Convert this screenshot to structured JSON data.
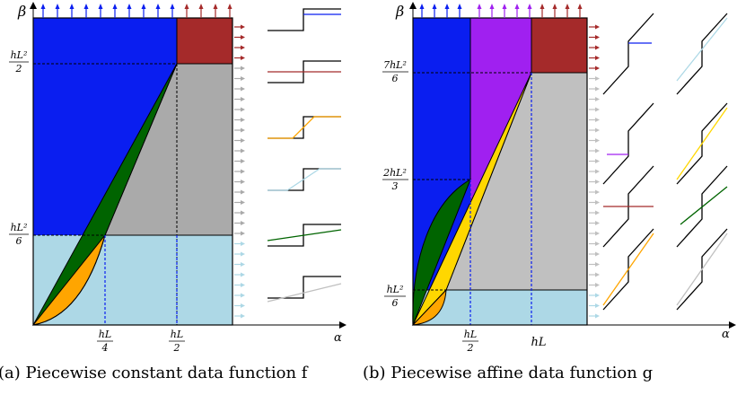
{
  "colors": {
    "blue": "#0a1ef0",
    "dark_red": "#a52a2a",
    "gray": "#aaaaaa",
    "light_blue": "#add8e6",
    "dark_green": "#006400",
    "orange": "#ffa500",
    "purple": "#a020f0",
    "gold": "#ffd700",
    "silver": "#c0c0c0",
    "black": "#000000"
  },
  "panel_a": {
    "caption": "(a) Piecewise constant data function f",
    "y_axis_label": "β",
    "x_axis_label": "α",
    "y_ticks": [
      {
        "num": "hL²",
        "den": "2"
      },
      {
        "num": "hL²",
        "den": "6"
      }
    ],
    "x_ticks": [
      {
        "num": "hL",
        "den": "4"
      },
      {
        "num": "hL",
        "den": "2"
      }
    ]
  },
  "panel_b": {
    "caption": "(b) Piecewise affine data function g",
    "y_axis_label": "β",
    "x_axis_label": "α",
    "y_ticks": [
      {
        "num": "7hL²",
        "den": "6"
      },
      {
        "num": "2hL²",
        "den": "3"
      },
      {
        "num": "hL²",
        "den": "6"
      }
    ],
    "x_ticks": [
      {
        "num": "hL",
        "den": "2"
      },
      {
        "plain": "hL"
      }
    ]
  }
}
